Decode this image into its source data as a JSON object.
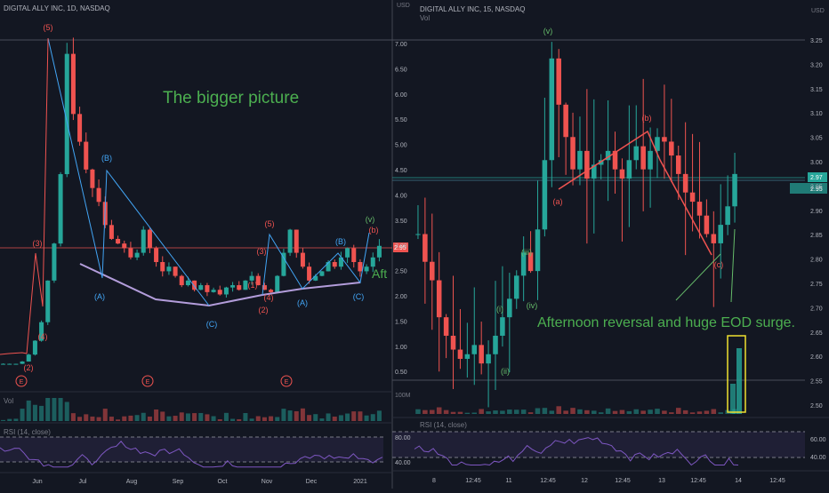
{
  "left_panel": {
    "title": "DIGITAL ALLY INC, 1D, NASDAQ",
    "currency": "USD",
    "price_axis": [
      "7.00",
      "6.50",
      "6.00",
      "5.50",
      "5.00",
      "4.50",
      "4.00",
      "3.50",
      "3.00",
      "2.50",
      "2.00",
      "1.50",
      "1.00",
      "0.50"
    ],
    "time_axis": [
      "Jun",
      "Jul",
      "Aug",
      "Sep",
      "Oct",
      "Nov",
      "Dec",
      "2021"
    ],
    "current_price_tag": "2.95",
    "volume_label": "Vol",
    "volume_axis": "100M",
    "rsi_label": "RSI (14, close)",
    "rsi_axis": [
      "80.00",
      "40.00"
    ],
    "annotation_main": "The bigger picture",
    "annotation_partial": "Aft",
    "earnings_marker": "E",
    "wave_labels": [
      {
        "t": "(5)",
        "c": "#ef5350"
      },
      {
        "t": "(3)",
        "c": "#ef5350"
      },
      {
        "t": "(4)",
        "c": "#ef5350"
      },
      {
        "t": "(2)",
        "c": "#ef5350"
      },
      {
        "t": "(B)",
        "c": "#42a5f5"
      },
      {
        "t": "(A)",
        "c": "#42a5f5"
      },
      {
        "t": "(C)",
        "c": "#42a5f5"
      },
      {
        "t": "(5)",
        "c": "#ef5350"
      },
      {
        "t": "(3)",
        "c": "#ef5350"
      },
      {
        "t": "(1)",
        "c": "#ef5350"
      },
      {
        "t": "(4)",
        "c": "#ef5350"
      },
      {
        "t": "(2)",
        "c": "#ef5350"
      },
      {
        "t": "(A)",
        "c": "#42a5f5"
      },
      {
        "t": "(B)",
        "c": "#42a5f5"
      },
      {
        "t": "(C)",
        "c": "#42a5f5"
      },
      {
        "t": "(v)",
        "c": "#66bb6a"
      },
      {
        "t": "(b)",
        "c": "#ef5350"
      }
    ]
  },
  "right_panel": {
    "title": "DIGITAL ALLY INC, 15, NASDAQ",
    "currency": "USD",
    "price_axis": [
      "3.25",
      "3.20",
      "3.15",
      "3.10",
      "3.05",
      "3.00",
      "2.95",
      "2.90",
      "2.85",
      "2.80",
      "2.75",
      "2.70",
      "2.65",
      "2.60",
      "2.55",
      "2.50"
    ],
    "time_axis": [
      "8",
      "12:45",
      "11",
      "12:45",
      "12",
      "12:45",
      "13",
      "12:45",
      "14",
      "12:45"
    ],
    "current_price_tag": "2.97",
    "extra_tag": "2.95",
    "volume_label": "Vol",
    "rsi_label": "RSI (14, close)",
    "rsi_axis": [
      "60.00",
      "40.00"
    ],
    "annotation_main": "Afternoon reversal and huge EOD surge.",
    "wave_labels": [
      {
        "t": "(v)",
        "c": "#66bb6a"
      },
      {
        "t": "(iii)",
        "c": "#66bb6a"
      },
      {
        "t": "(i)",
        "c": "#66bb6a"
      },
      {
        "t": "(iv)",
        "c": "#66bb6a"
      },
      {
        "t": "(ii)",
        "c": "#66bb6a"
      },
      {
        "t": "(a)",
        "c": "#ef5350"
      },
      {
        "t": "(b)",
        "c": "#ef5350"
      },
      {
        "t": "(c)",
        "c": "#ef5350"
      }
    ]
  },
  "colors": {
    "up": "#26a69a",
    "down": "#ef5350",
    "bg": "#131722",
    "text": "#b2b5be",
    "annotation": "#4caf50",
    "rsi": "#7e57c2"
  },
  "chart_data": [
    {
      "type": "candlestick",
      "title": "DIGITAL ALLY INC, 1D, NASDAQ",
      "ylim": [
        0.2,
        7.4
      ],
      "close_series": [
        0.4,
        0.4,
        0.4,
        0.45,
        0.6,
        0.9,
        1.3,
        2.2,
        3.0,
        4.5,
        7.1,
        5.8,
        5.2,
        4.6,
        4.2,
        3.9,
        3.4,
        3.1,
        3.0,
        2.9,
        2.7,
        2.8,
        3.3,
        2.9,
        2.6,
        2.4,
        2.5,
        2.3,
        2.1,
        2.2,
        2.0,
        2.1,
        1.95,
        2.0,
        1.9,
        2.05,
        2.1,
        2.0,
        2.2,
        2.3,
        2.1,
        2.0,
        1.95,
        2.3,
        2.8,
        3.3,
        2.8,
        2.5,
        2.2,
        2.3,
        2.4,
        2.6,
        2.5,
        2.7,
        2.9,
        2.6,
        2.4,
        2.5,
        2.7,
        2.95
      ]
    },
    {
      "type": "candlestick",
      "title": "DIGITAL ALLY INC, 15, NASDAQ",
      "ylim": [
        2.47,
        3.26
      ],
      "close_series": [
        2.84,
        2.78,
        2.74,
        2.66,
        2.62,
        2.59,
        2.57,
        2.58,
        2.6,
        2.56,
        2.58,
        2.62,
        2.66,
        2.7,
        2.75,
        2.8,
        2.76,
        2.85,
        3.0,
        3.22,
        3.12,
        3.05,
        2.98,
        3.02,
        2.96,
        2.99,
        3.0,
        3.02,
        2.98,
        2.96,
        3.0,
        3.03,
        2.98,
        3.02,
        3.05,
        3.04,
        3.01,
        2.97,
        2.93,
        2.91,
        2.88,
        2.84,
        2.82,
        2.86,
        2.9,
        2.97
      ]
    }
  ]
}
